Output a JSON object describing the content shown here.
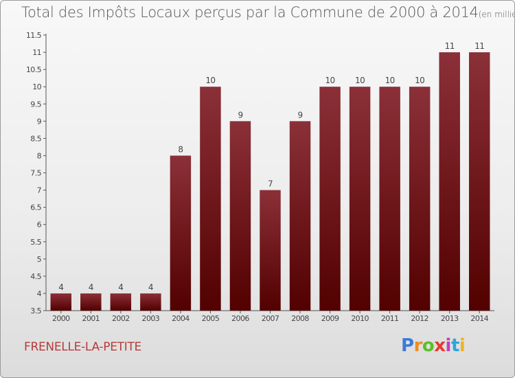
{
  "title": "Total des Impôts Locaux perçus par la Commune de 2000 à 2014",
  "unit_note": "(en milliers d'€)",
  "commune": "FRENELLE-LA-PETITE",
  "brand": "Proxiti",
  "colors": {
    "bar_top": "#8b3038",
    "bar_bottom": "#520000",
    "title": "#555555",
    "commune": "#b83a3a"
  },
  "chart_data": {
    "type": "bar",
    "title": "Total des Impôts Locaux perçus par la Commune de 2000 à 2014",
    "categories": [
      "2000",
      "2001",
      "2002",
      "2003",
      "2004",
      "2005",
      "2006",
      "2007",
      "2008",
      "2009",
      "2010",
      "2011",
      "2012",
      "2013",
      "2014"
    ],
    "values": [
      4,
      4,
      4,
      4,
      8,
      10,
      9,
      7,
      9,
      10,
      10,
      10,
      10,
      11,
      11
    ],
    "ylim": [
      3.5,
      11.5
    ],
    "yticks": [
      "3.5",
      "4",
      "4.5",
      "5",
      "5.5",
      "6",
      "6.5",
      "7",
      "7.5",
      "8",
      "8.5",
      "9",
      "9.5",
      "10",
      "10.5",
      "11",
      "11.5"
    ],
    "grid": false
  }
}
